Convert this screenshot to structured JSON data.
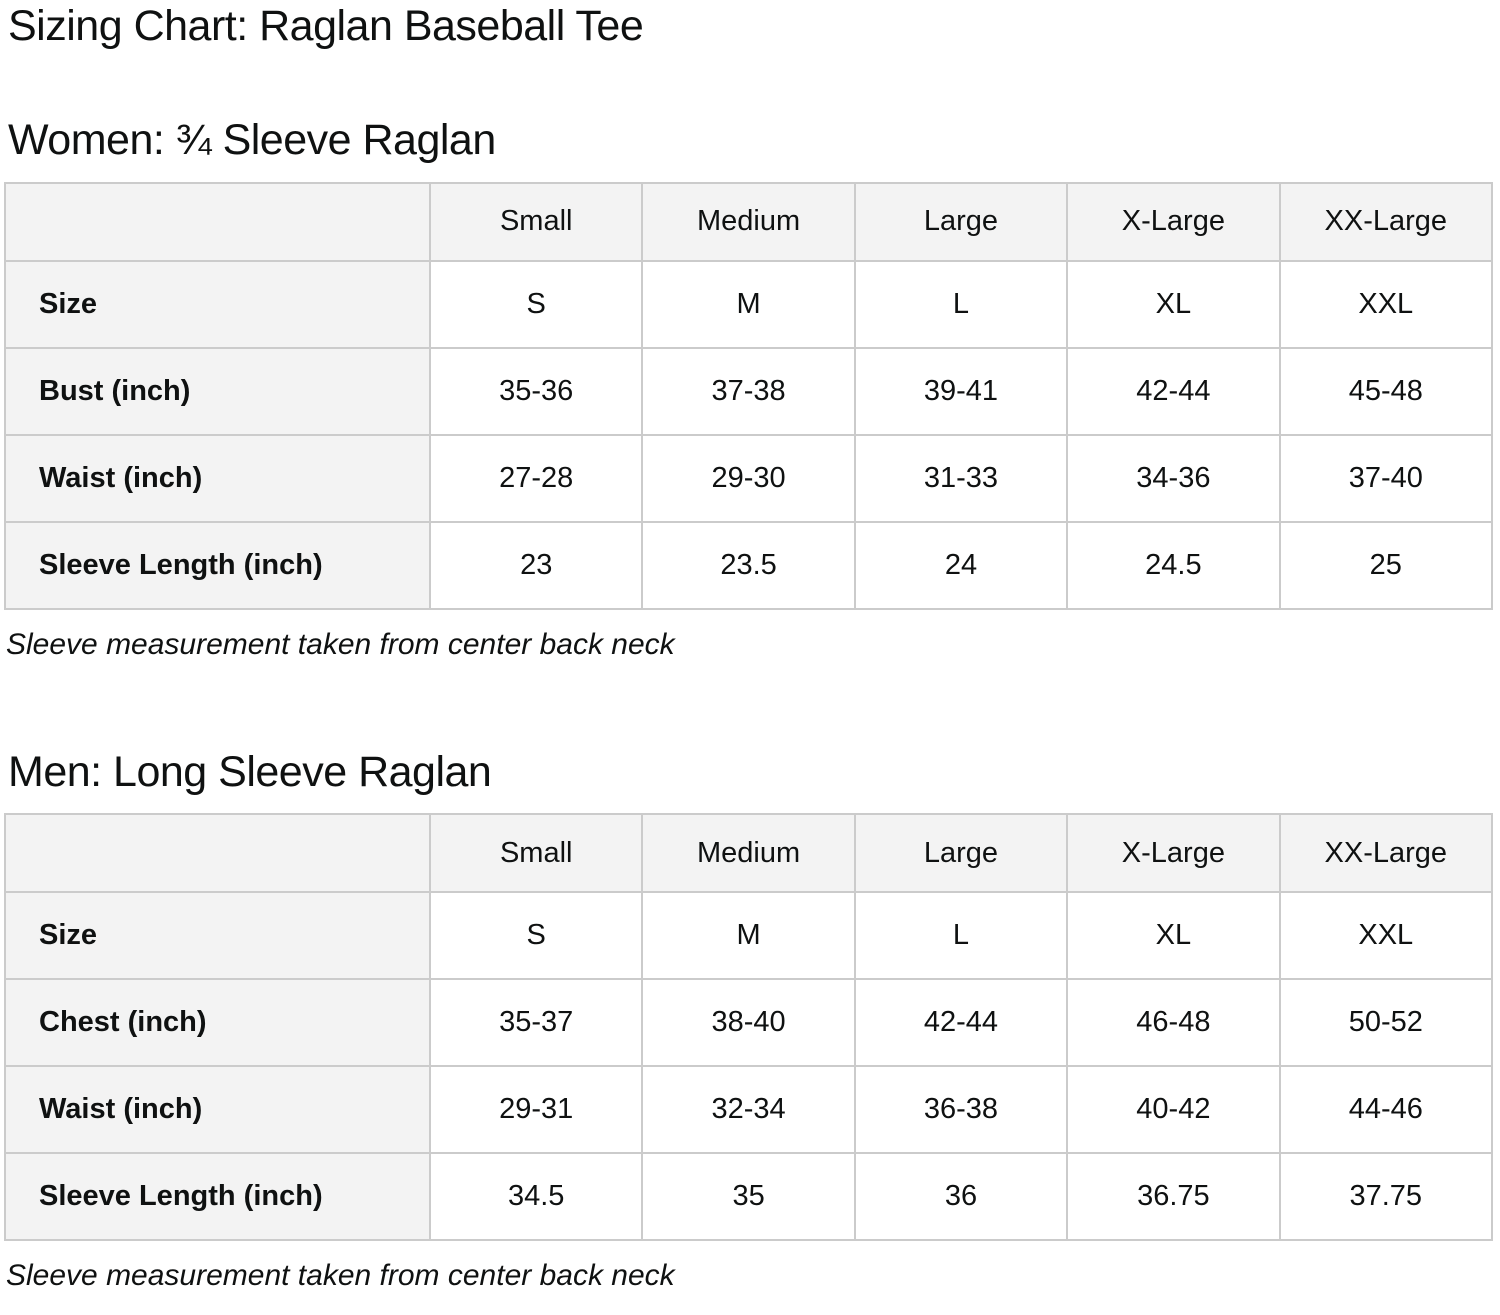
{
  "page": {
    "title": "Sizing Chart: Raglan Baseball Tee"
  },
  "colors": {
    "text": "#0f1111",
    "cell_header_bg": "#f3f3f3",
    "cell_data_bg": "#ffffff",
    "table_border": "#cbcbcb",
    "background": "#ffffff"
  },
  "sections": [
    {
      "heading": "Women: ¾ Sleeve Raglan",
      "note": "Sleeve measurement taken from center back neck",
      "table": {
        "columns": [
          "",
          "Small",
          "Medium",
          "Large",
          "X-Large",
          "XX-Large"
        ],
        "rows": [
          {
            "label": "Size",
            "values": [
              "S",
              "M",
              "L",
              "XL",
              "XXL"
            ]
          },
          {
            "label": "Bust (inch)",
            "values": [
              "35-36",
              "37-38",
              "39-41",
              "42-44",
              "45-48"
            ]
          },
          {
            "label": "Waist (inch)",
            "values": [
              "27-28",
              "29-30",
              "31-33",
              "34-36",
              "37-40"
            ]
          },
          {
            "label": "Sleeve Length (inch)",
            "values": [
              "23",
              "23.5",
              "24",
              "24.5",
              "25"
            ]
          }
        ]
      }
    },
    {
      "heading": "Men: Long Sleeve Raglan",
      "note": "Sleeve measurement taken from center back neck",
      "table": {
        "columns": [
          "",
          "Small",
          "Medium",
          "Large",
          "X-Large",
          "XX-Large"
        ],
        "rows": [
          {
            "label": "Size",
            "values": [
              "S",
              "M",
              "L",
              "XL",
              "XXL"
            ]
          },
          {
            "label": "Chest (inch)",
            "values": [
              "35-37",
              "38-40",
              "42-44",
              "46-48",
              "50-52"
            ]
          },
          {
            "label": "Waist (inch)",
            "values": [
              "29-31",
              "32-34",
              "36-38",
              "40-42",
              "44-46"
            ]
          },
          {
            "label": "Sleeve Length (inch)",
            "values": [
              "34.5",
              "35",
              "36",
              "36.75",
              "37.75"
            ]
          }
        ]
      }
    }
  ],
  "chart_data": [
    {
      "type": "table",
      "title": "Women: ¾ Sleeve Raglan",
      "columns": [
        "",
        "Small",
        "Medium",
        "Large",
        "X-Large",
        "XX-Large"
      ],
      "rows": [
        [
          "Size",
          "S",
          "M",
          "L",
          "XL",
          "XXL"
        ],
        [
          "Bust (inch)",
          "35-36",
          "37-38",
          "39-41",
          "42-44",
          "45-48"
        ],
        [
          "Waist (inch)",
          "27-28",
          "29-30",
          "31-33",
          "34-36",
          "37-40"
        ],
        [
          "Sleeve Length (inch)",
          "23",
          "23.5",
          "24",
          "24.5",
          "25"
        ]
      ],
      "note": "Sleeve measurement taken from center back neck"
    },
    {
      "type": "table",
      "title": "Men: Long Sleeve Raglan",
      "columns": [
        "",
        "Small",
        "Medium",
        "Large",
        "X-Large",
        "XX-Large"
      ],
      "rows": [
        [
          "Size",
          "S",
          "M",
          "L",
          "XL",
          "XXL"
        ],
        [
          "Chest (inch)",
          "35-37",
          "38-40",
          "42-44",
          "46-48",
          "50-52"
        ],
        [
          "Waist (inch)",
          "29-31",
          "32-34",
          "36-38",
          "40-42",
          "44-46"
        ],
        [
          "Sleeve Length (inch)",
          "34.5",
          "35",
          "36",
          "36.75",
          "37.75"
        ]
      ],
      "note": "Sleeve measurement taken from center back neck"
    }
  ]
}
